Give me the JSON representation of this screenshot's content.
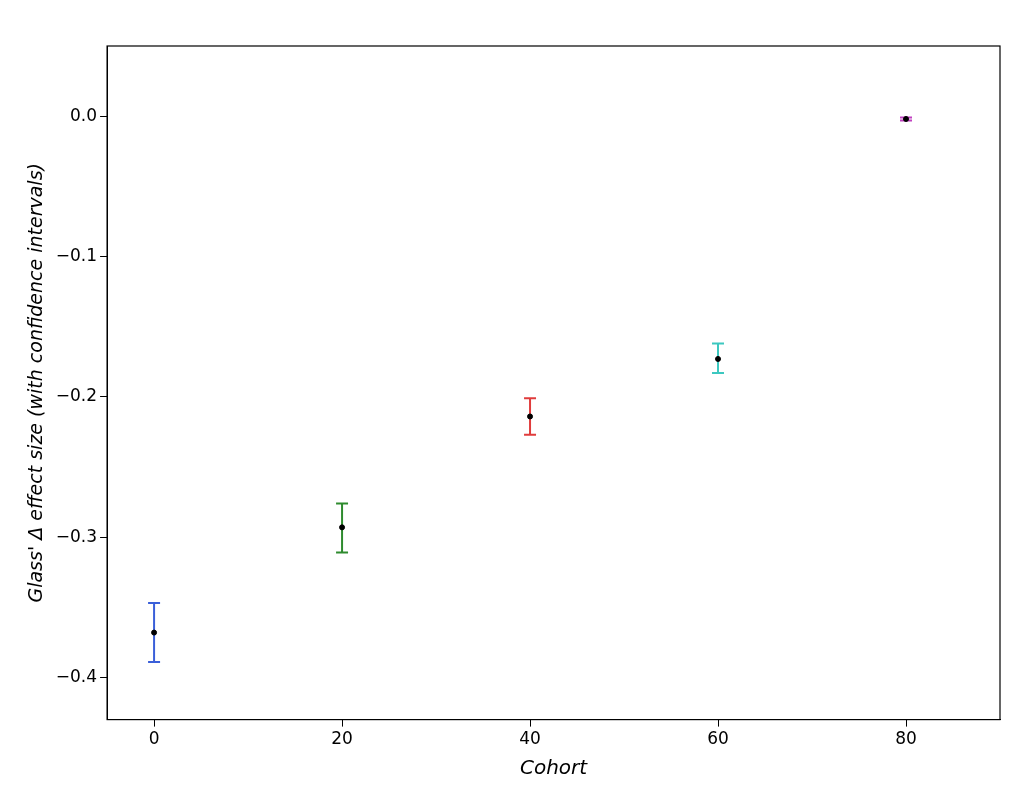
{
  "chart_data": {
    "type": "scatter",
    "x_label": "Cohort",
    "y_label": "Glass' Δ effect size (with confidence intervals)",
    "x": [
      0,
      20,
      40,
      60,
      80
    ],
    "values": [
      -0.368,
      -0.293,
      -0.214,
      -0.173,
      -0.002
    ],
    "ci_low": [
      -0.389,
      -0.311,
      -0.227,
      -0.183,
      -0.003
    ],
    "ci_high": [
      -0.347,
      -0.276,
      -0.201,
      -0.162,
      -0.001
    ],
    "colors": [
      "#3a5fd9",
      "#2e8b2e",
      "#e03c3c",
      "#3cc8c0",
      "#c040c0"
    ],
    "marker": "circle",
    "xlim": [
      -5,
      90
    ],
    "ylim": [
      -0.43,
      0.05
    ],
    "xticks": [
      0,
      20,
      40,
      60,
      80
    ],
    "yticks": [
      {
        "value": -0.4,
        "label": "−0.4"
      },
      {
        "value": -0.3,
        "label": "−0.3"
      },
      {
        "value": -0.2,
        "label": "−0.2"
      },
      {
        "value": -0.1,
        "label": "−0.1"
      },
      {
        "value": 0,
        "label": "0.0"
      }
    ],
    "grid": false
  }
}
